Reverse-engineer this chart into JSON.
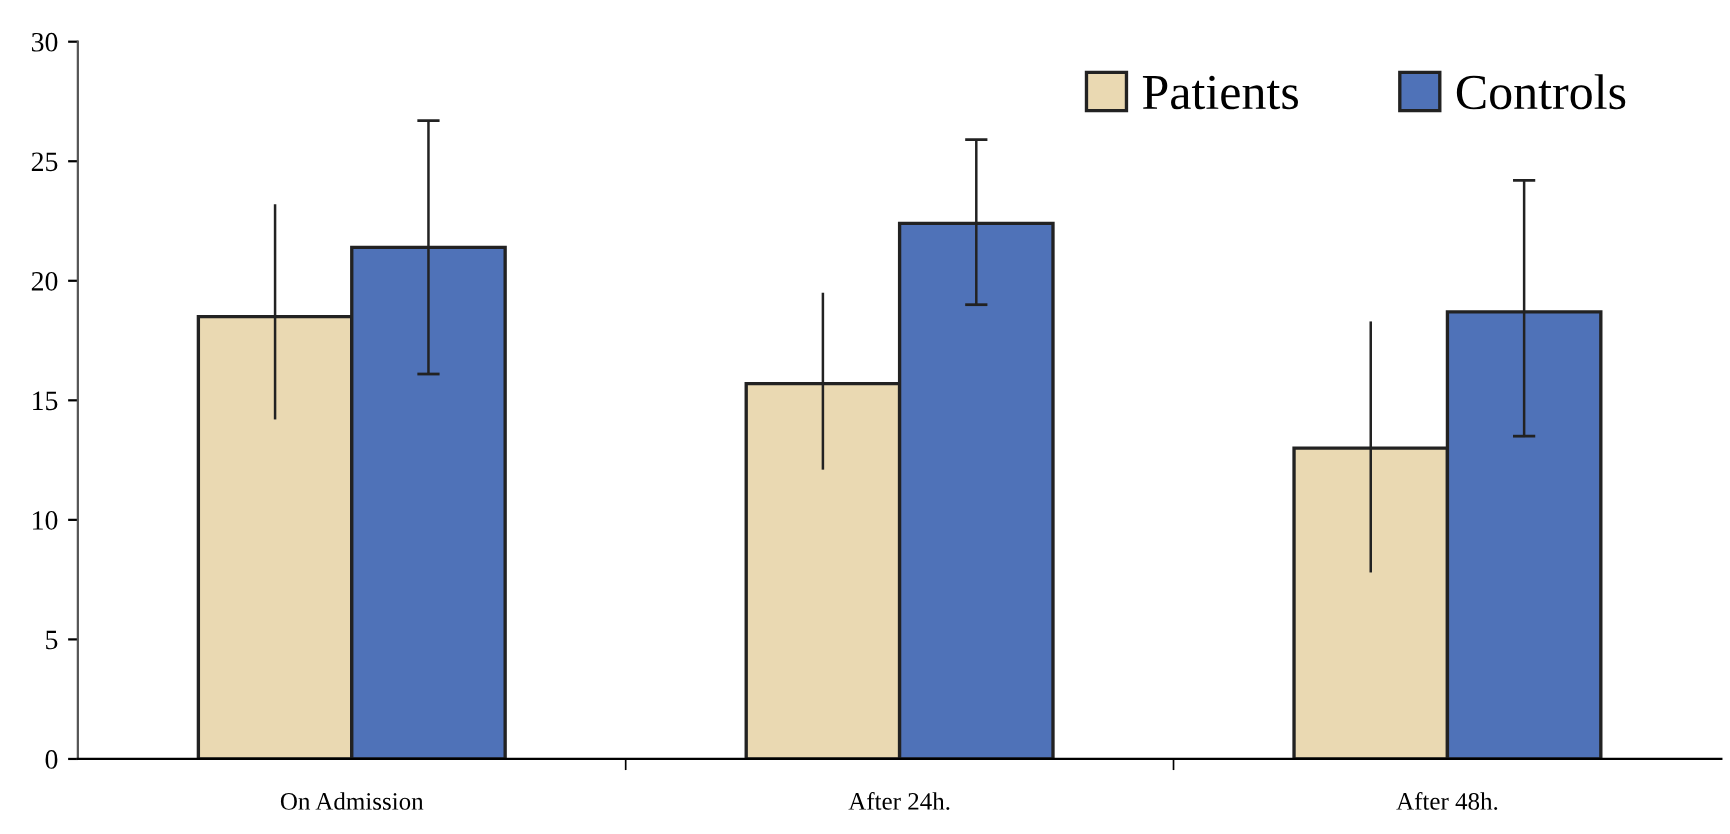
{
  "chart_data": {
    "type": "bar",
    "categories": [
      "On Admission",
      "After 24h.",
      "After 48h."
    ],
    "series": [
      {
        "name": "Patients",
        "color": "#ead9b2",
        "values": [
          18.5,
          15.7,
          13.0
        ],
        "errors": [
          [
            14.2,
            23.2
          ],
          [
            12.1,
            19.5
          ],
          [
            7.8,
            18.3
          ]
        ]
      },
      {
        "name": "Controls",
        "color": "#4f72b8",
        "values": [
          21.4,
          22.4,
          18.7
        ],
        "errors": [
          [
            16.1,
            26.7
          ],
          [
            19.0,
            25.9
          ],
          [
            13.5,
            24.2
          ]
        ]
      }
    ],
    "ylim": [
      0,
      30
    ],
    "yticks": [
      0,
      5,
      10,
      15,
      20,
      25,
      30
    ],
    "grid": false,
    "legend": "top right"
  }
}
